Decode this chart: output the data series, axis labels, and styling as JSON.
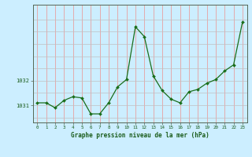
{
  "hours": [
    0,
    1,
    2,
    3,
    4,
    5,
    6,
    7,
    8,
    9,
    10,
    11,
    12,
    13,
    14,
    15,
    16,
    17,
    18,
    19,
    20,
    21,
    22,
    23
  ],
  "pressure": [
    1031.1,
    1031.1,
    1030.9,
    1031.2,
    1031.35,
    1031.3,
    1030.65,
    1030.65,
    1031.1,
    1031.75,
    1032.05,
    1034.2,
    1033.8,
    1032.2,
    1031.6,
    1031.25,
    1031.1,
    1031.55,
    1031.65,
    1031.9,
    1032.05,
    1032.4,
    1032.65,
    1034.4
  ],
  "line_color": "#1a6e1a",
  "marker_color": "#1a6e1a",
  "bg_color": "#cceeff",
  "xlabel": "Graphe pression niveau de la mer (hPa)",
  "xlabel_color": "#1a5c1a",
  "tick_label_color": "#1a5c1a",
  "ytick_labels": [
    "1031",
    "1032"
  ],
  "ytick_values": [
    1031.0,
    1032.0
  ],
  "ylim": [
    1030.3,
    1035.1
  ],
  "xlim": [
    -0.5,
    23.5
  ],
  "vgrid_color": "#e8a0a0",
  "hgrid_color": "#c0c0c0"
}
